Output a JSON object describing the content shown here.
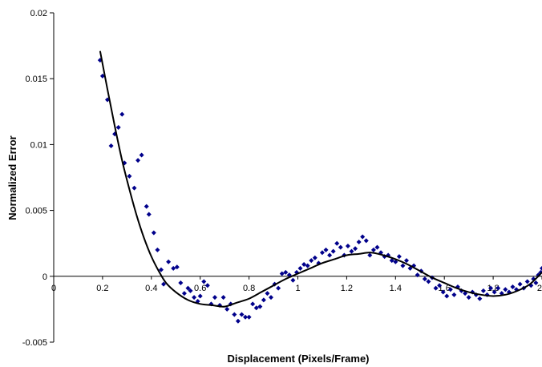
{
  "chart_data": {
    "type": "scatter",
    "title": "",
    "xlabel": "Displacement (Pixels/Frame)",
    "ylabel": "Normalized Error",
    "xlim": [
      0,
      2
    ],
    "ylim": [
      -0.005,
      0.02
    ],
    "xticks": [
      0,
      0.2,
      0.4,
      0.6,
      0.8,
      1,
      1.2,
      1.4,
      1.6,
      1.8,
      2
    ],
    "xtick_labels": [
      "0",
      "0.2",
      "0.4",
      "0.6",
      "0.8",
      "1",
      "1.2",
      "1.4",
      "1.6",
      "1.8",
      "2"
    ],
    "yticks": [
      -0.005,
      0,
      0.005,
      0.01,
      0.015,
      0.02
    ],
    "ytick_labels": [
      "-0.005",
      "0",
      "0.005",
      "0.01",
      "0.015",
      "0.02"
    ],
    "grid": false,
    "legend": "none",
    "colors": {
      "points": "#00008b",
      "curve": "#000000"
    },
    "series": [
      {
        "kind": "points",
        "points": [
          [
            0.19,
            0.0164
          ],
          [
            0.2,
            0.0152
          ],
          [
            0.22,
            0.0134
          ],
          [
            0.235,
            0.0099
          ],
          [
            0.25,
            0.0108
          ],
          [
            0.265,
            0.0113
          ],
          [
            0.28,
            0.0123
          ],
          [
            0.29,
            0.0086
          ],
          [
            0.31,
            0.0076
          ],
          [
            0.33,
            0.0067
          ],
          [
            0.345,
            0.0088
          ],
          [
            0.36,
            0.0092
          ],
          [
            0.38,
            0.0053
          ],
          [
            0.39,
            0.0047
          ],
          [
            0.41,
            0.0033
          ],
          [
            0.425,
            0.002
          ],
          [
            0.44,
            0.0005
          ],
          [
            0.45,
            -0.0006
          ],
          [
            0.47,
            0.0011
          ],
          [
            0.49,
            0.0006
          ],
          [
            0.505,
            0.0007
          ],
          [
            0.52,
            -0.0005
          ],
          [
            0.535,
            -0.0013
          ],
          [
            0.55,
            -0.0009
          ],
          [
            0.56,
            -0.0011
          ],
          [
            0.575,
            -0.0016
          ],
          [
            0.59,
            -0.0019
          ],
          [
            0.6,
            -0.0015
          ],
          [
            0.615,
            -0.0004
          ],
          [
            0.63,
            -0.0007
          ],
          [
            0.645,
            -0.0021
          ],
          [
            0.66,
            -0.0016
          ],
          [
            0.68,
            -0.0022
          ],
          [
            0.695,
            -0.0016
          ],
          [
            0.71,
            -0.0025
          ],
          [
            0.725,
            -0.0021
          ],
          [
            0.74,
            -0.0029
          ],
          [
            0.755,
            -0.0034
          ],
          [
            0.77,
            -0.0029
          ],
          [
            0.785,
            -0.0031
          ],
          [
            0.8,
            -0.0031
          ],
          [
            0.815,
            -0.0021
          ],
          [
            0.83,
            -0.0024
          ],
          [
            0.845,
            -0.0023
          ],
          [
            0.86,
            -0.0018
          ],
          [
            0.875,
            -0.0013
          ],
          [
            0.89,
            -0.0016
          ],
          [
            0.905,
            -0.0006
          ],
          [
            0.92,
            -0.0009
          ],
          [
            0.935,
            0.0002
          ],
          [
            0.95,
            0.0003
          ],
          [
            0.965,
            0.0001
          ],
          [
            0.98,
            -0.0003
          ],
          [
            0.995,
            0.0003
          ],
          [
            1.01,
            0.0006
          ],
          [
            1.025,
            0.0009
          ],
          [
            1.04,
            0.0008
          ],
          [
            1.055,
            0.0012
          ],
          [
            1.07,
            0.0014
          ],
          [
            1.085,
            0.001
          ],
          [
            1.1,
            0.0018
          ],
          [
            1.115,
            0.002
          ],
          [
            1.13,
            0.0016
          ],
          [
            1.145,
            0.0019
          ],
          [
            1.16,
            0.0025
          ],
          [
            1.175,
            0.0022
          ],
          [
            1.19,
            0.0016
          ],
          [
            1.205,
            0.0023
          ],
          [
            1.22,
            0.0019
          ],
          [
            1.235,
            0.0021
          ],
          [
            1.25,
            0.0026
          ],
          [
            1.265,
            0.003
          ],
          [
            1.28,
            0.0027
          ],
          [
            1.295,
            0.0016
          ],
          [
            1.31,
            0.002
          ],
          [
            1.325,
            0.0022
          ],
          [
            1.34,
            0.0018
          ],
          [
            1.355,
            0.0015
          ],
          [
            1.37,
            0.0016
          ],
          [
            1.385,
            0.0012
          ],
          [
            1.4,
            0.0011
          ],
          [
            1.415,
            0.0015
          ],
          [
            1.43,
            0.0008
          ],
          [
            1.445,
            0.0012
          ],
          [
            1.46,
            0.0006
          ],
          [
            1.475,
            0.0008
          ],
          [
            1.49,
            0.0001
          ],
          [
            1.505,
            0.0004
          ],
          [
            1.52,
            -0.0002
          ],
          [
            1.535,
            -0.0004
          ],
          [
            1.55,
            -0.0001
          ],
          [
            1.565,
            -0.0009
          ],
          [
            1.58,
            -0.0007
          ],
          [
            1.595,
            -0.0012
          ],
          [
            1.61,
            -0.0015
          ],
          [
            1.625,
            -0.001
          ],
          [
            1.64,
            -0.0014
          ],
          [
            1.655,
            -0.0008
          ],
          [
            1.67,
            -0.0011
          ],
          [
            1.685,
            -0.0013
          ],
          [
            1.7,
            -0.0016
          ],
          [
            1.715,
            -0.0012
          ],
          [
            1.73,
            -0.0014
          ],
          [
            1.745,
            -0.0017
          ],
          [
            1.76,
            -0.0011
          ],
          [
            1.775,
            -0.0014
          ],
          [
            1.79,
            -0.0009
          ],
          [
            1.805,
            -0.0012
          ],
          [
            1.82,
            -0.0009
          ],
          [
            1.835,
            -0.0013
          ],
          [
            1.85,
            -0.001
          ],
          [
            1.865,
            -0.0012
          ],
          [
            1.88,
            -0.0008
          ],
          [
            1.895,
            -0.001
          ],
          [
            1.91,
            -0.0006
          ],
          [
            1.925,
            -0.0009
          ],
          [
            1.94,
            -0.0004
          ],
          [
            1.955,
            -0.0007
          ],
          [
            1.965,
            -0.0002
          ],
          [
            1.975,
            -0.0005
          ],
          [
            1.985,
            0.0001
          ],
          [
            1.995,
            0.0003
          ],
          [
            2.0,
            0.0006
          ]
        ]
      },
      {
        "kind": "curve",
        "points": [
          [
            0.19,
            0.0171
          ],
          [
            0.22,
            0.0142
          ],
          [
            0.25,
            0.0114
          ],
          [
            0.28,
            0.0088
          ],
          [
            0.31,
            0.0066
          ],
          [
            0.34,
            0.0046
          ],
          [
            0.37,
            0.0029
          ],
          [
            0.4,
            0.0015
          ],
          [
            0.43,
            0.0004
          ],
          [
            0.46,
            -0.0005
          ],
          [
            0.5,
            -0.0012
          ],
          [
            0.55,
            -0.0018
          ],
          [
            0.6,
            -0.0021
          ],
          [
            0.65,
            -0.0022
          ],
          [
            0.7,
            -0.0023
          ],
          [
            0.75,
            -0.002
          ],
          [
            0.8,
            -0.0017
          ],
          [
            0.85,
            -0.0012
          ],
          [
            0.9,
            -0.0007
          ],
          [
            0.95,
            -0.0002
          ],
          [
            1.0,
            0.0002
          ],
          [
            1.05,
            0.0006
          ],
          [
            1.1,
            0.001
          ],
          [
            1.15,
            0.0013
          ],
          [
            1.2,
            0.0016
          ],
          [
            1.25,
            0.0017
          ],
          [
            1.3,
            0.0018
          ],
          [
            1.35,
            0.0016
          ],
          [
            1.4,
            0.0013
          ],
          [
            1.45,
            0.0009
          ],
          [
            1.5,
            0.0004
          ],
          [
            1.55,
            -0.0001
          ],
          [
            1.6,
            -0.0005
          ],
          [
            1.65,
            -0.0009
          ],
          [
            1.7,
            -0.0012
          ],
          [
            1.75,
            -0.0014
          ],
          [
            1.8,
            -0.0015
          ],
          [
            1.85,
            -0.0014
          ],
          [
            1.9,
            -0.0011
          ],
          [
            1.95,
            -0.0006
          ],
          [
            2.0,
            0.0003
          ]
        ]
      }
    ]
  }
}
